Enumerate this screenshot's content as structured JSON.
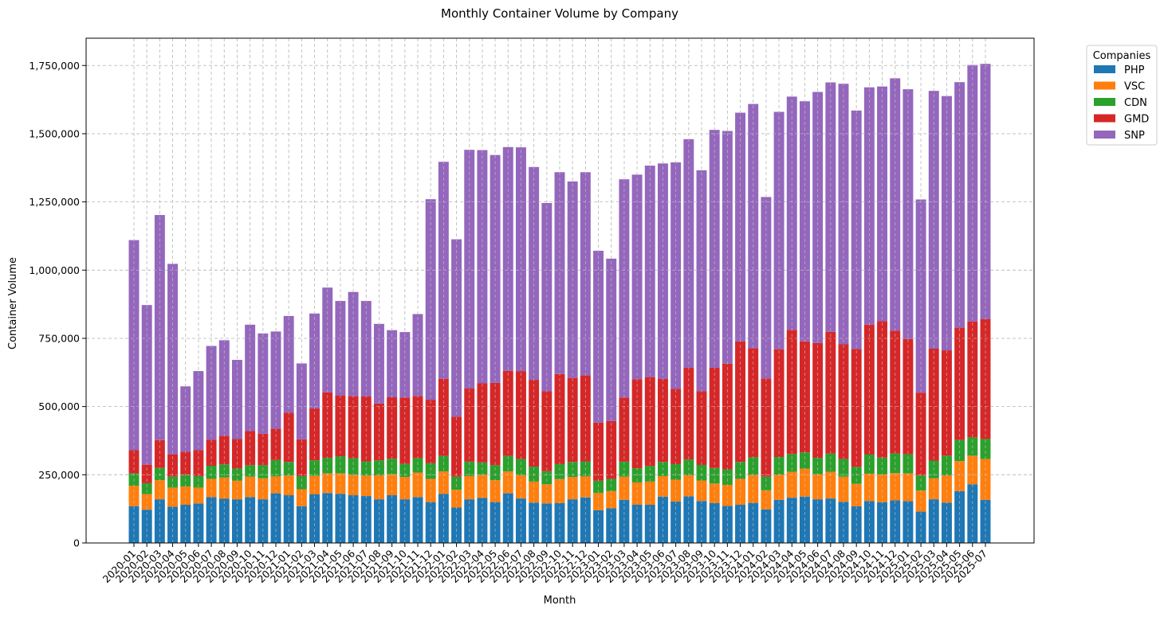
{
  "chart_data": {
    "type": "bar",
    "stacked": true,
    "title": "Monthly Container Volume by Company",
    "xlabel": "Month",
    "ylabel": "Container Volume",
    "ylim": [
      0,
      1850000
    ],
    "yticks": [
      0,
      250000,
      500000,
      750000,
      1000000,
      1250000,
      1500000,
      1750000
    ],
    "ytick_labels": [
      "0",
      "250,000",
      "500,000",
      "750,000",
      "1,000,000",
      "1,250,000",
      "1,500,000",
      "1,750,000"
    ],
    "grid": true,
    "legend": {
      "title": "Companies",
      "placement": "outside top-right"
    },
    "categories": [
      "2020-01",
      "2020-02",
      "2020-03",
      "2020-04",
      "2020-05",
      "2020-06",
      "2020-07",
      "2020-08",
      "2020-09",
      "2020-10",
      "2020-11",
      "2020-12",
      "2021-01",
      "2021-02",
      "2021-03",
      "2021-04",
      "2021-05",
      "2021-06",
      "2021-07",
      "2021-08",
      "2021-09",
      "2021-10",
      "2021-11",
      "2021-12",
      "2022-01",
      "2022-02",
      "2022-03",
      "2022-04",
      "2022-05",
      "2022-06",
      "2022-07",
      "2022-08",
      "2022-09",
      "2022-10",
      "2022-11",
      "2022-12",
      "2023-01",
      "2023-02",
      "2023-03",
      "2023-04",
      "2023-05",
      "2023-06",
      "2023-07",
      "2023-08",
      "2023-09",
      "2023-10",
      "2023-11",
      "2023-12",
      "2024-01",
      "2024-02",
      "2024-03",
      "2024-04",
      "2024-05",
      "2024-06",
      "2024-07",
      "2024-08",
      "2024-09",
      "2024-10",
      "2024-11",
      "2024-12",
      "2025-01",
      "2025-02",
      "2025-03",
      "2025-04",
      "2025-05",
      "2025-06",
      "2025-07"
    ],
    "series": [
      {
        "name": "PHP",
        "color": "#1f77b4",
        "values": [
          135000,
          122000,
          160000,
          133000,
          140000,
          145000,
          168000,
          162000,
          160000,
          168000,
          160000,
          182000,
          175000,
          135000,
          178000,
          183000,
          180000,
          175000,
          172000,
          160000,
          175000,
          160000,
          168000,
          150000,
          180000,
          130000,
          160000,
          165000,
          150000,
          182000,
          163000,
          148000,
          145000,
          146000,
          160000,
          167000,
          120000,
          127000,
          158000,
          140000,
          140000,
          170000,
          152000,
          171000,
          154000,
          146000,
          136000,
          140000,
          147000,
          123000,
          158000,
          166000,
          170000,
          160000,
          163000,
          151000,
          135000,
          154000,
          149000,
          156000,
          153000,
          115000,
          160000,
          148000,
          190000,
          215000,
          158000
        ]
      },
      {
        "name": "VSC",
        "color": "#ff7f0e",
        "values": [
          75000,
          57000,
          70000,
          70000,
          67000,
          58000,
          67000,
          78000,
          68000,
          75000,
          77000,
          62000,
          72000,
          62000,
          68000,
          72000,
          75000,
          74000,
          75000,
          88000,
          77000,
          82000,
          90000,
          85000,
          82000,
          65000,
          85000,
          85000,
          80000,
          80000,
          85000,
          77000,
          70000,
          88000,
          82000,
          77000,
          63000,
          63000,
          85000,
          82000,
          85000,
          75000,
          80000,
          77000,
          75000,
          72000,
          77000,
          95000,
          102000,
          70000,
          92000,
          95000,
          102000,
          92000,
          98000,
          92000,
          82000,
          100000,
          102000,
          100000,
          102000,
          77000,
          77000,
          100000,
          110000,
          105000,
          150000
        ]
      },
      {
        "name": "CDN",
        "color": "#2ca02c",
        "values": [
          45000,
          40000,
          45000,
          40000,
          42000,
          42000,
          48000,
          48000,
          45000,
          42000,
          48000,
          60000,
          50000,
          48000,
          57000,
          57000,
          63000,
          62000,
          52000,
          55000,
          57000,
          48000,
          53000,
          57000,
          57000,
          48000,
          53000,
          45000,
          55000,
          57000,
          60000,
          55000,
          48000,
          55000,
          55000,
          55000,
          45000,
          45000,
          55000,
          52000,
          57000,
          52000,
          57000,
          58000,
          57000,
          57000,
          57000,
          62000,
          65000,
          50000,
          65000,
          65000,
          60000,
          60000,
          67000,
          65000,
          62000,
          70000,
          62000,
          72000,
          70000,
          55000,
          65000,
          72000,
          77000,
          67000,
          73000
        ]
      },
      {
        "name": "GMD",
        "color": "#d62728",
        "values": [
          85000,
          68000,
          102000,
          82000,
          85000,
          95000,
          95000,
          105000,
          108000,
          125000,
          115000,
          115000,
          180000,
          135000,
          190000,
          240000,
          223000,
          227000,
          238000,
          208000,
          225000,
          243000,
          228000,
          233000,
          283000,
          220000,
          268000,
          290000,
          302000,
          312000,
          322000,
          318000,
          293000,
          330000,
          308000,
          315000,
          213000,
          212000,
          235000,
          326000,
          326000,
          304000,
          276000,
          336000,
          270000,
          367000,
          387000,
          442000,
          400000,
          360000,
          395000,
          455000,
          407000,
          421000,
          446000,
          420000,
          432000,
          476000,
          500000,
          450000,
          423000,
          304000,
          410000,
          386000,
          412000,
          425000,
          440000
        ]
      },
      {
        "name": "SNP",
        "color": "#9467bd",
        "values": [
          770000,
          585000,
          825000,
          698000,
          240000,
          290000,
          344000,
          350000,
          290000,
          390000,
          368000,
          356000,
          355000,
          278000,
          348000,
          384000,
          346000,
          382000,
          350000,
          292000,
          246000,
          240000,
          300000,
          735000,
          795000,
          650000,
          875000,
          855000,
          835000,
          820000,
          820000,
          780000,
          690000,
          740000,
          720000,
          745000,
          630000,
          595000,
          800000,
          750000,
          775000,
          790000,
          830000,
          838000,
          810000,
          872000,
          853000,
          838000,
          895000,
          665000,
          870000,
          855000,
          880000,
          920000,
          914000,
          955000,
          874000,
          870000,
          860000,
          925000,
          915000,
          708000,
          945000,
          932000,
          900000,
          940000,
          935000
        ]
      }
    ]
  }
}
